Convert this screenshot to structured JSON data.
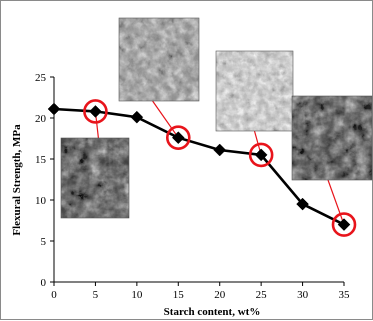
{
  "chart_data": {
    "type": "line",
    "title": "",
    "xlabel": "Starch content, wt%",
    "ylabel": "Flexural Strength, MPa",
    "x": [
      0,
      5,
      10,
      15,
      20,
      25,
      30,
      35
    ],
    "series": [
      {
        "values": [
          21.1,
          20.8,
          20.1,
          17.6,
          16.1,
          15.5,
          9.5,
          7.0
        ]
      }
    ],
    "xlim": [
      0,
      35
    ],
    "ylim": [
      0,
      25
    ],
    "xticks": [
      "0",
      "5",
      "10",
      "15",
      "20",
      "25",
      "30",
      "35"
    ],
    "yticks": [
      "0",
      "5",
      "10",
      "15",
      "20",
      "25"
    ],
    "grid": false,
    "highlighted_x": [
      5,
      15,
      25,
      35
    ],
    "colors": {
      "line": "#000000",
      "marker": "#000000",
      "highlight": "#e8141b"
    },
    "insets": [
      {
        "linked_x": 5,
        "tone": "dark"
      },
      {
        "linked_x": 15,
        "tone": "gray"
      },
      {
        "linked_x": 25,
        "tone": "light"
      },
      {
        "linked_x": 35,
        "tone": "dark"
      }
    ]
  }
}
